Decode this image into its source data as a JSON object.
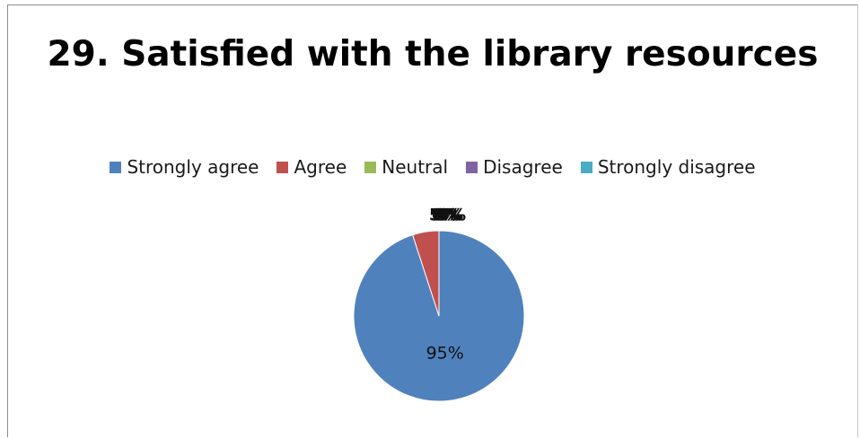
{
  "chart_data": {
    "type": "pie",
    "title": "29. Satisfied with the library resources",
    "legend_position": "top",
    "categories": [
      "Strongly agree",
      "Agree",
      "Neutral",
      "Disagree",
      "Strongly disagree"
    ],
    "values": [
      95,
      5,
      0,
      0,
      0
    ],
    "value_labels": [
      "95%",
      "5%",
      "0%",
      "0%",
      "0%"
    ],
    "colors": [
      "#4F81BD",
      "#C0504D",
      "#9BBB59",
      "#8064A2",
      "#4BACC6"
    ]
  }
}
